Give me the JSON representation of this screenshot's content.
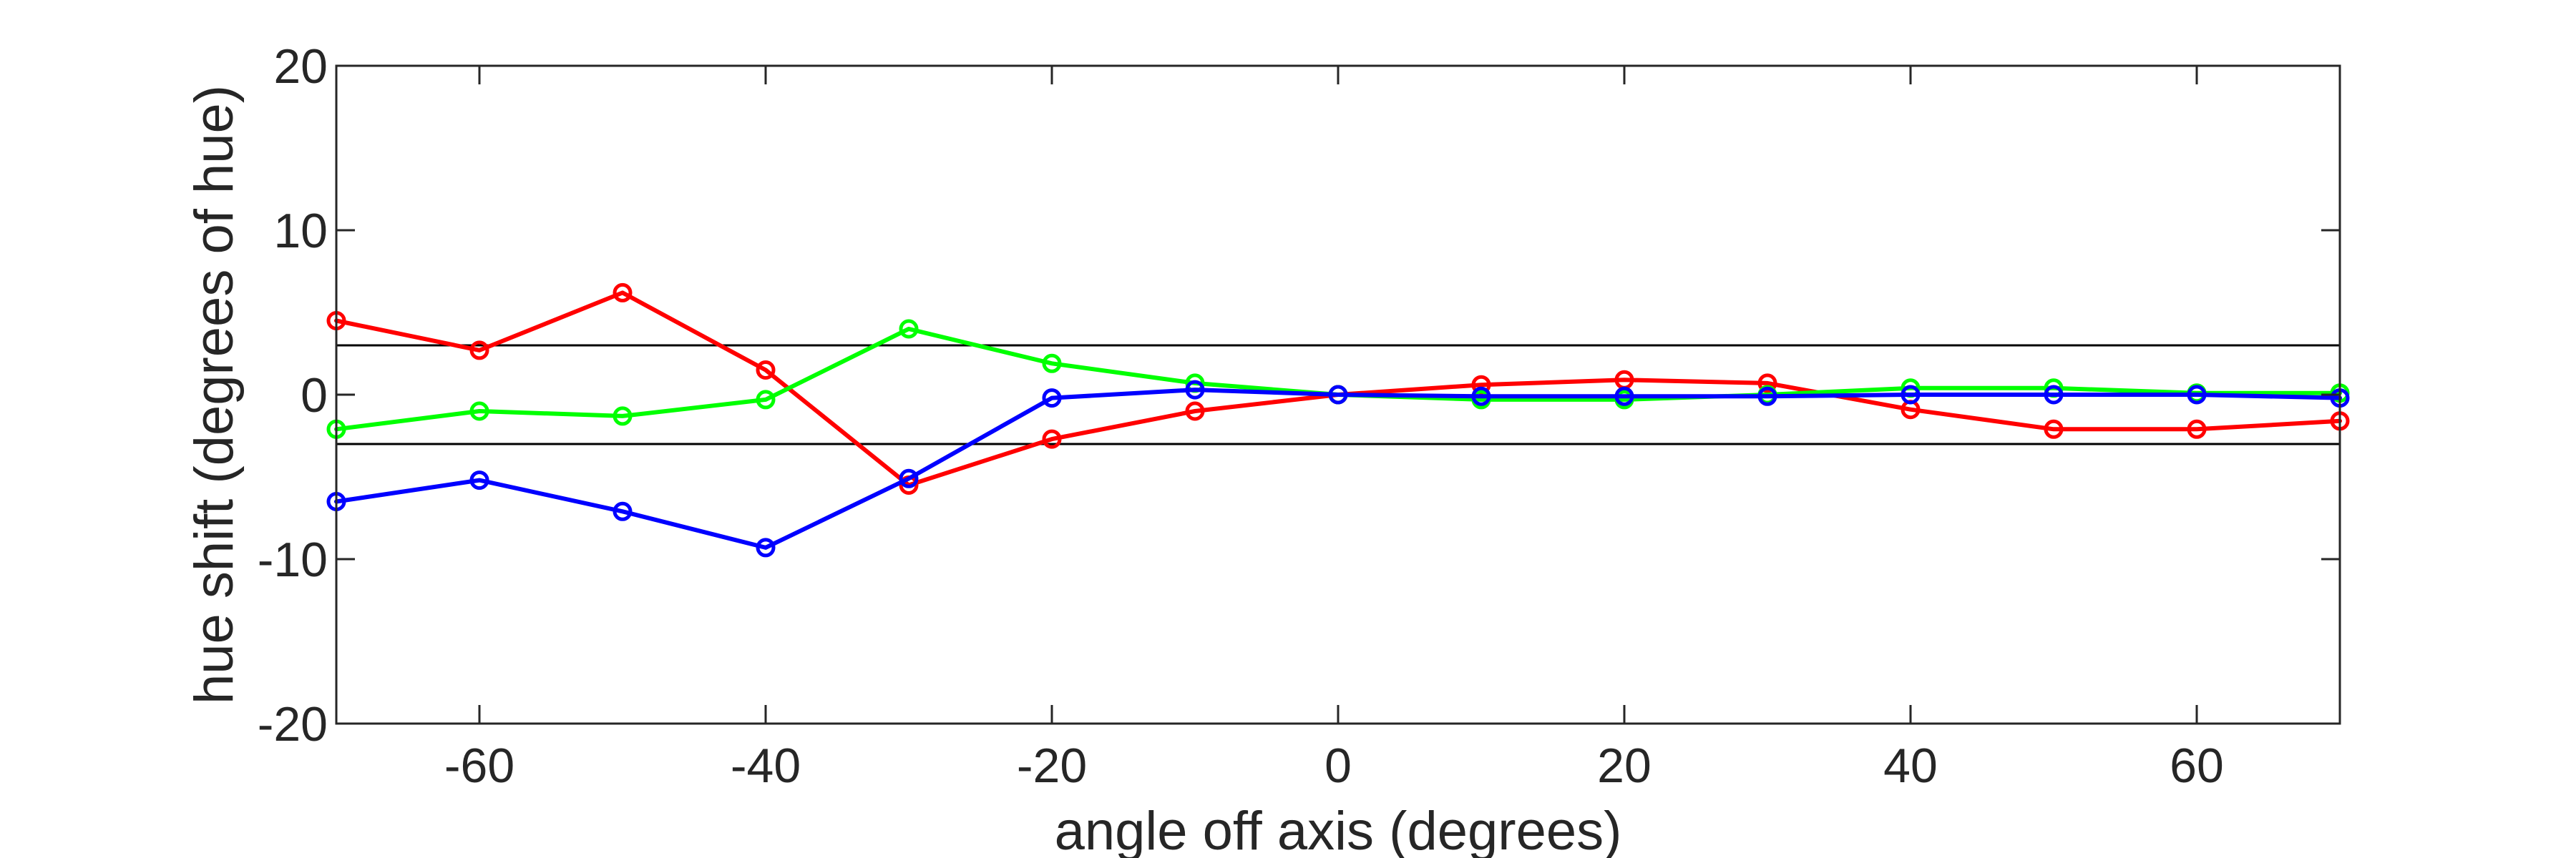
{
  "chart_data": {
    "type": "line",
    "title": "",
    "xlabel": "angle off axis (degrees)",
    "ylabel": "hue shift (degrees of hue)",
    "xlim": [
      -70,
      70
    ],
    "ylim": [
      -20,
      20
    ],
    "xticks": [
      -60,
      -40,
      -20,
      0,
      20,
      40,
      60
    ],
    "yticks": [
      -20,
      -10,
      0,
      10,
      20
    ],
    "grid": false,
    "legend": "none",
    "reference_lines": [
      3,
      -3
    ],
    "x": [
      -70,
      -60,
      -50,
      -40,
      -30,
      -20,
      -10,
      0,
      10,
      20,
      30,
      40,
      50,
      60,
      70
    ],
    "series": [
      {
        "color": "#ff0000",
        "marker": "circle",
        "values": [
          4.5,
          2.7,
          6.2,
          1.5,
          -5.5,
          -2.7,
          -1.0,
          0.0,
          0.6,
          0.9,
          0.7,
          -0.9,
          -2.1,
          -2.1,
          -1.6
        ]
      },
      {
        "color": "#00ff00",
        "marker": "circle",
        "values": [
          -2.1,
          -1.0,
          -1.3,
          -0.3,
          4.0,
          1.9,
          0.7,
          0.0,
          -0.3,
          -0.3,
          0.0,
          0.4,
          0.4,
          0.1,
          0.1
        ]
      },
      {
        "color": "#0000ff",
        "marker": "circle",
        "values": [
          -6.5,
          -5.2,
          -7.1,
          -9.3,
          -5.1,
          -0.2,
          0.3,
          0.0,
          -0.1,
          -0.1,
          -0.1,
          0.0,
          0.0,
          0.0,
          -0.2
        ]
      }
    ]
  }
}
